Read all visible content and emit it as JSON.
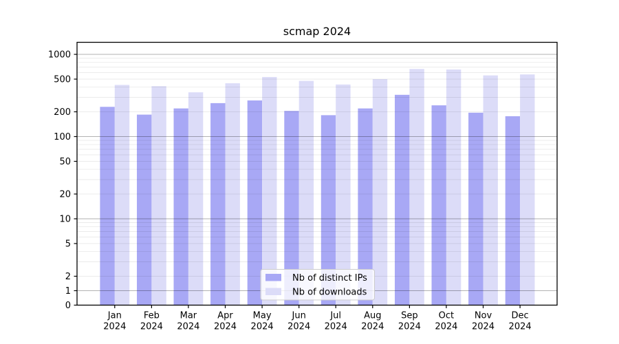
{
  "chart_data": {
    "type": "bar",
    "title": "scmap 2024",
    "categories": [
      "Jan",
      "Feb",
      "Mar",
      "Apr",
      "May",
      "Jun",
      "Jul",
      "Aug",
      "Sep",
      "Oct",
      "Nov",
      "Dec"
    ],
    "x_year_label": "2024",
    "series": [
      {
        "name": "Nb of distinct IPs",
        "color": "#a8a8f5",
        "values": [
          230,
          185,
          220,
          255,
          275,
          205,
          182,
          220,
          322,
          240,
          195,
          177
        ]
      },
      {
        "name": "Nb of downloads",
        "color": "#dcdcf8",
        "values": [
          425,
          410,
          345,
          445,
          530,
          475,
          430,
          500,
          665,
          655,
          555,
          570
        ]
      }
    ],
    "yscale": "symlog",
    "yticks": [
      0,
      1,
      2,
      5,
      10,
      20,
      50,
      100,
      200,
      500,
      1000
    ],
    "ylim": [
      0,
      1400
    ],
    "grid": "horizontal",
    "major_grid_values": [
      1,
      10,
      100,
      1000
    ],
    "minor_grid_values": [
      2,
      3,
      4,
      5,
      6,
      7,
      8,
      9,
      20,
      30,
      40,
      50,
      60,
      70,
      80,
      90,
      200,
      300,
      400,
      500,
      600,
      700,
      800,
      900
    ],
    "legend_position": "lower center",
    "colors": {
      "spine": "#000000",
      "major_grid": "rgba(0,0,0,0.30)",
      "minor_grid": "rgba(0,0,0,0.08)",
      "legend_border": "#cccccc",
      "legend_bg": "rgba(255,255,255,0.8)"
    }
  }
}
